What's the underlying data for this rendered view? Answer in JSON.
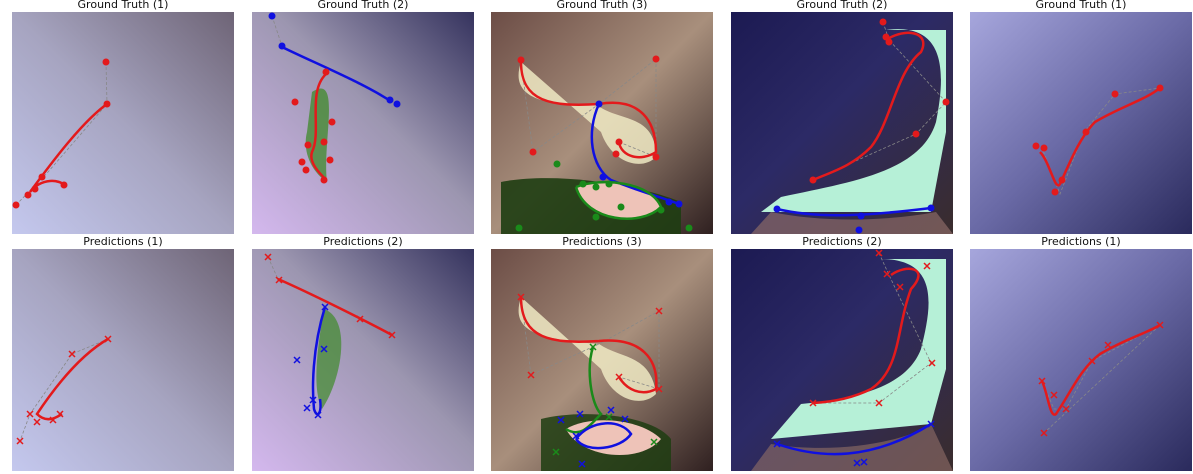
{
  "rows": [
    {
      "name": "ground-truth",
      "panels": [
        {
          "title": "Ground Truth (1)",
          "bg": [
            "#c9cdea",
            "#8d8a9c",
            "#6e6878"
          ]
        },
        {
          "title": "Ground Truth (2)",
          "bg": [
            "#3d3a6e",
            "#d2b5ea",
            "#8b8b9a"
          ]
        },
        {
          "title": "Ground Truth (3)",
          "bg": [
            "#4a2e2e",
            "#efe8c2",
            "#1f3a12"
          ]
        },
        {
          "title": "Ground Truth (2)",
          "bg": [
            "#1d1a55",
            "#b6f0d7",
            "#3b2c2c"
          ]
        },
        {
          "title": "Ground Truth (1)",
          "bg": [
            "#9f9fd6",
            "#5e5e9c",
            "#2f2f5e"
          ]
        }
      ]
    },
    {
      "name": "predictions",
      "panels": [
        {
          "title": "Predictions (1)",
          "bg": [
            "#c9cdea",
            "#8d8a9c",
            "#6e6878"
          ]
        },
        {
          "title": "Predictions (2)",
          "bg": [
            "#3d3a6e",
            "#d2b5ea",
            "#8b8b9a"
          ]
        },
        {
          "title": "Predictions (3)",
          "bg": [
            "#4a2e2e",
            "#efe8c2",
            "#1f3a12"
          ]
        },
        {
          "title": "Predictions (2)",
          "bg": [
            "#1d1a55",
            "#b6f0d7",
            "#3b2c2c"
          ]
        },
        {
          "title": "Predictions (1)",
          "bg": [
            "#9f9fd6",
            "#5e5e9c",
            "#2f2f5e"
          ]
        }
      ]
    }
  ],
  "colors": {
    "red": "#e31a1c",
    "blue": "#1010e0",
    "green": "#1a8a1a",
    "control": "#888888"
  }
}
